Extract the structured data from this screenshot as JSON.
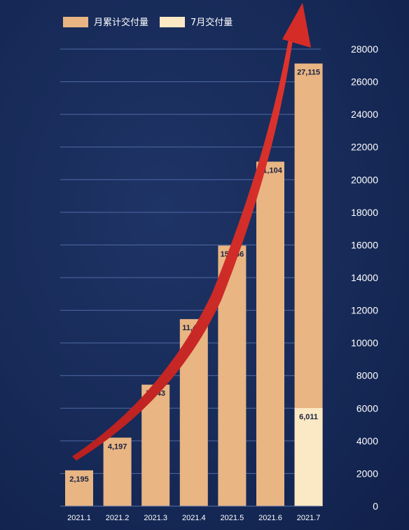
{
  "chart_data": {
    "type": "bar",
    "categories": [
      "2021.1",
      "2021.2",
      "2021.3",
      "2021.4",
      "2021.5",
      "2021.6",
      "2021.7"
    ],
    "series": [
      {
        "name": "月累计交付量",
        "values": [
          2195,
          4197,
          7443,
          11458,
          15966,
          21104,
          27115
        ],
        "labels": [
          "2,195",
          "4,197",
          "7,443",
          "11,458",
          "15,966",
          "21,104",
          "27,115"
        ],
        "color": "#e8b583"
      },
      {
        "name": "7月交付量",
        "values": [
          null,
          null,
          null,
          null,
          null,
          null,
          6011
        ],
        "labels": [
          "",
          "",
          "",
          "",
          "",
          "",
          "6,011"
        ],
        "color": "#fbe8c4"
      }
    ],
    "yticks": [
      "0",
      "2000",
      "4000",
      "6000",
      "8000",
      "10000",
      "12000",
      "14000",
      "16000",
      "18000",
      "20000",
      "22000",
      "24000",
      "26000",
      "28000"
    ],
    "ylim": [
      0,
      28000
    ],
    "grid": true,
    "legend_position": "top-left",
    "trend_arrow_color": "#d9302c",
    "title": "",
    "xlabel": "",
    "ylabel": ""
  }
}
